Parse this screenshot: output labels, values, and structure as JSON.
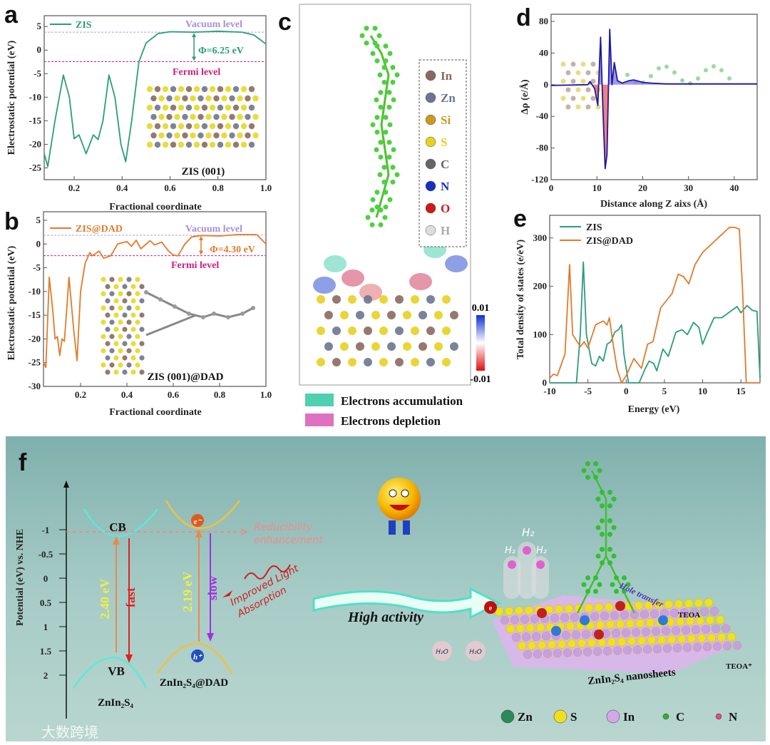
{
  "panels": {
    "a": "a",
    "b": "b",
    "c": "c",
    "d": "d",
    "e": "e",
    "f": "f"
  },
  "chart_data": [
    {
      "id": "a",
      "type": "line",
      "xlabel": "Fractional coordinate",
      "ylabel": "Electrostatic potential (eV)",
      "xlim": [
        0.075,
        1.0
      ],
      "ylim": [
        -27.5,
        7.3
      ],
      "xticks": [
        0.2,
        0.4,
        0.6,
        0.8,
        1.0
      ],
      "yticks": [
        5,
        0,
        -5,
        -10,
        -15,
        -20,
        -25
      ],
      "legend": "top-left",
      "series": [
        {
          "name": "ZIS",
          "color": "#2a9d7c",
          "points": [
            [
              0.075,
              -22
            ],
            [
              0.09,
              -24.7
            ],
            [
              0.12,
              -15
            ],
            [
              0.155,
              -5.3
            ],
            [
              0.18,
              -10
            ],
            [
              0.2,
              -18.8
            ],
            [
              0.22,
              -18
            ],
            [
              0.25,
              -22
            ],
            [
              0.28,
              -18
            ],
            [
              0.3,
              -19
            ],
            [
              0.32,
              -15
            ],
            [
              0.345,
              -5.3
            ],
            [
              0.37,
              -10
            ],
            [
              0.395,
              -20
            ],
            [
              0.415,
              -23.7
            ],
            [
              0.44,
              -15
            ],
            [
              0.47,
              -2.5
            ],
            [
              0.5,
              1.5
            ],
            [
              0.55,
              3.5
            ],
            [
              0.6,
              3.9
            ],
            [
              0.7,
              3.8
            ],
            [
              0.8,
              4
            ],
            [
              0.9,
              3.8
            ],
            [
              0.95,
              3.2
            ],
            [
              1.0,
              1.3
            ]
          ]
        }
      ],
      "vacuum_level": 3.8,
      "fermi_level": -2.45,
      "annotations": {
        "vacuum": "Vacuum level",
        "fermi": "Fermi level",
        "work_function": "Φ=6.25 eV",
        "inset": "ZIS (001)"
      }
    },
    {
      "id": "b",
      "type": "line",
      "xlabel": "Fractional coordinate",
      "ylabel": "Electrostatic potential (eV)",
      "xlim": [
        0.04,
        1.0
      ],
      "ylim": [
        -30,
        6.8
      ],
      "xticks": [
        0.2,
        0.4,
        0.6,
        0.8,
        1.0
      ],
      "yticks": [
        5,
        0,
        -5,
        -10,
        -15,
        -20,
        -25,
        -30
      ],
      "legend": "top-left",
      "series": [
        {
          "name": "ZIS@DAD",
          "color": "#e07b2a",
          "points": [
            [
              0.04,
              -25
            ],
            [
              0.05,
              -26
            ],
            [
              0.065,
              -7
            ],
            [
              0.08,
              -14
            ],
            [
              0.09,
              -20
            ],
            [
              0.1,
              -19.5
            ],
            [
              0.11,
              -23.5
            ],
            [
              0.12,
              -20
            ],
            [
              0.13,
              -20.5
            ],
            [
              0.15,
              -7
            ],
            [
              0.17,
              -18
            ],
            [
              0.185,
              -24.6
            ],
            [
              0.2,
              -10
            ],
            [
              0.22,
              -4
            ],
            [
              0.24,
              -1.8
            ],
            [
              0.25,
              -2.5
            ],
            [
              0.28,
              -1.5
            ],
            [
              0.3,
              -3
            ],
            [
              0.33,
              -2.5
            ],
            [
              0.36,
              0
            ],
            [
              0.4,
              0.5
            ],
            [
              0.42,
              -0.5
            ],
            [
              0.44,
              0.8
            ],
            [
              0.46,
              -1
            ],
            [
              0.5,
              0.7
            ],
            [
              0.52,
              -0.2
            ],
            [
              0.55,
              0.4
            ],
            [
              0.58,
              -1.5
            ],
            [
              0.6,
              -2.3
            ],
            [
              0.62,
              -2.5
            ],
            [
              0.65,
              0
            ],
            [
              0.68,
              1.5
            ],
            [
              0.72,
              1.8
            ],
            [
              0.8,
              1.7
            ],
            [
              0.88,
              2
            ],
            [
              0.96,
              2
            ],
            [
              1.0,
              0
            ]
          ]
        }
      ],
      "vacuum_level": 1.85,
      "fermi_level": -2.45,
      "annotations": {
        "vacuum": "Vacuum level",
        "fermi": "Fermi level",
        "work_function": "Φ=4.30 eV",
        "inset": "ZIS (001)@DAD"
      }
    },
    {
      "id": "d",
      "type": "area",
      "xlabel": "Distance along Z aixs (Å)",
      "ylabel": "Δρ (e/Å)",
      "xlim": [
        0,
        45
      ],
      "ylim": [
        -120,
        89
      ],
      "xticks": [
        0,
        10,
        20,
        30,
        40
      ],
      "yticks": [
        80,
        40,
        0,
        -40,
        -80,
        -120
      ],
      "series": [
        {
          "name": "Δρ",
          "color": "#1a1aa0",
          "positive_fill": "#8a7ee6",
          "negative_fill": "#f06a6a",
          "points": [
            [
              0,
              -1
            ],
            [
              8,
              0
            ],
            [
              8.5,
              4
            ],
            [
              9.5,
              -5
            ],
            [
              10.2,
              -26
            ],
            [
              10.8,
              60
            ],
            [
              11.3,
              -30
            ],
            [
              11.8,
              -106
            ],
            [
              12.2,
              -88
            ],
            [
              12.8,
              70
            ],
            [
              13.3,
              0
            ],
            [
              13.8,
              28
            ],
            [
              14.5,
              5
            ],
            [
              15.5,
              2
            ],
            [
              17,
              5
            ],
            [
              18,
              6
            ],
            [
              20,
              3
            ],
            [
              22,
              2
            ],
            [
              25,
              1
            ],
            [
              30,
              1
            ],
            [
              45,
              1
            ]
          ]
        }
      ]
    },
    {
      "id": "e",
      "type": "line",
      "xlabel": "Energy (eV)",
      "ylabel": "Total density of states (e/eV)",
      "xlim": [
        -10,
        17.5
      ],
      "ylim": [
        0,
        347
      ],
      "xticks": [
        -10,
        -5,
        0,
        5,
        10,
        15
      ],
      "yticks": [
        0,
        100,
        200,
        300
      ],
      "legend": "top-left",
      "series": [
        {
          "name": "ZIS",
          "color": "#2a9d7c",
          "points": [
            [
              -10,
              0
            ],
            [
              -6.5,
              0
            ],
            [
              -6,
              100
            ],
            [
              -5.6,
              250
            ],
            [
              -5.2,
              100
            ],
            [
              -4.5,
              40
            ],
            [
              -4,
              35
            ],
            [
              -3.5,
              55
            ],
            [
              -3,
              45
            ],
            [
              -2.5,
              80
            ],
            [
              -2,
              85
            ],
            [
              -1.5,
              105
            ],
            [
              -1,
              110
            ],
            [
              -0.6,
              120
            ],
            [
              -0.3,
              60
            ],
            [
              0.3,
              0
            ],
            [
              1.7,
              0
            ],
            [
              2.5,
              30
            ],
            [
              3,
              45
            ],
            [
              3.6,
              40
            ],
            [
              4,
              25
            ],
            [
              4.8,
              70
            ],
            [
              5.5,
              55
            ],
            [
              6.5,
              105
            ],
            [
              7.3,
              110
            ],
            [
              8,
              100
            ],
            [
              8.8,
              125
            ],
            [
              9.5,
              115
            ],
            [
              10,
              80
            ],
            [
              10.5,
              100
            ],
            [
              11.5,
              135
            ],
            [
              12.5,
              135
            ],
            [
              14.5,
              158
            ],
            [
              15,
              145
            ],
            [
              15.8,
              160
            ],
            [
              16.5,
              150
            ],
            [
              17.1,
              148
            ],
            [
              17.5,
              10
            ]
          ]
        },
        {
          "name": "ZIS@DAD",
          "color": "#e07b2a",
          "points": [
            [
              -10,
              10
            ],
            [
              -9.5,
              18
            ],
            [
              -9,
              15
            ],
            [
              -8,
              60
            ],
            [
              -7.4,
              245
            ],
            [
              -7,
              100
            ],
            [
              -6,
              75
            ],
            [
              -5.5,
              85
            ],
            [
              -5,
              72
            ],
            [
              -4,
              120
            ],
            [
              -3,
              128
            ],
            [
              -2.5,
              120
            ],
            [
              -2.2,
              135
            ],
            [
              -1.7,
              80
            ],
            [
              -1.2,
              30
            ],
            [
              -0.6,
              0
            ],
            [
              0,
              15
            ],
            [
              1,
              50
            ],
            [
              2,
              30
            ],
            [
              2.8,
              80
            ],
            [
              3.5,
              85
            ],
            [
              4.5,
              155
            ],
            [
              6,
              185
            ],
            [
              6.8,
              225
            ],
            [
              7.5,
              220
            ],
            [
              8.2,
              205
            ],
            [
              9,
              245
            ],
            [
              10,
              270
            ],
            [
              12,
              300
            ],
            [
              13.5,
              322
            ],
            [
              14.2,
              322
            ],
            [
              14.8,
              318
            ],
            [
              15.2,
              200
            ],
            [
              15.7,
              0
            ],
            [
              17.5,
              0
            ]
          ]
        }
      ]
    },
    {
      "id": "f",
      "type": "diagram",
      "ylabel": "Potential (eV) vs. NHE",
      "yticks": [
        -1,
        -0.5,
        0,
        0.5,
        1,
        1.5,
        2
      ],
      "materials": [
        {
          "name": "ZnIn₂S₄",
          "cb": "CB",
          "vb": "VB",
          "gap": "2.40 eV",
          "recombination": "fast"
        },
        {
          "name": "ZnIn₂S₄@DAD",
          "electron": "e⁻",
          "hole": "h⁺",
          "gap": "2.19 eV",
          "recombination": "slow"
        }
      ]
    }
  ],
  "panel_c": {
    "legend": [
      "In",
      "Zn",
      "Si",
      "S",
      "C",
      "N",
      "O",
      "H"
    ],
    "legend_colors": [
      "#8a6a60",
      "#6d7590",
      "#c99a20",
      "#e8d020",
      "#666666",
      "#1630c0",
      "#d01818",
      "#dddddd"
    ],
    "colorbar_max": "0.01",
    "colorbar_min": "-0.01",
    "accumulation": "Electrons accumulation",
    "depletion": "Electrons depletion",
    "accumulation_color": "#4fd0b0",
    "depletion_color": "#e070c0"
  },
  "panel_f": {
    "reducibility": "Reducibility",
    "enhancement": "enhancement",
    "improved_light": "Improved Light",
    "absorption": "Absorption",
    "high_activity": "High activity",
    "h2": "H₂",
    "h2o": "H₂O",
    "hole_transfer": "Hole transfer",
    "teoa": "TEOA",
    "teoa_plus": "TEOA⁺",
    "nanosheets": "ZnIn₂S₄ nanosheets",
    "electron_small": "e",
    "hole_small": "h⁺",
    "legend": [
      {
        "label": "Zn",
        "color": "#2a8a5a"
      },
      {
        "label": "S",
        "color": "#f0e020"
      },
      {
        "label": "In",
        "color": "#d4a8e8"
      },
      {
        "label": "C",
        "color": "#30b030"
      },
      {
        "label": "N",
        "color": "#e05070"
      }
    ]
  },
  "watermark": "大数跨境"
}
